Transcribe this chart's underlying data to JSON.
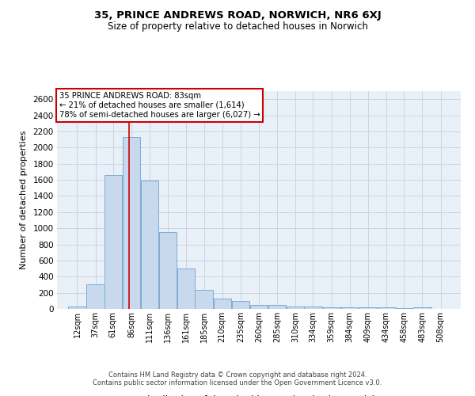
{
  "title1": "35, PRINCE ANDREWS ROAD, NORWICH, NR6 6XJ",
  "title2": "Size of property relative to detached houses in Norwich",
  "xlabel": "Distribution of detached houses by size in Norwich",
  "ylabel": "Number of detached properties",
  "footer1": "Contains HM Land Registry data © Crown copyright and database right 2024.",
  "footer2": "Contains public sector information licensed under the Open Government Licence v3.0.",
  "bar_color": "#c9d9ed",
  "bar_edgecolor": "#7aadd4",
  "annotation_line1": "35 PRINCE ANDREWS ROAD: 83sqm",
  "annotation_line2": "← 21% of detached houses are smaller (1,614)",
  "annotation_line3": "78% of semi-detached houses are larger (6,027) →",
  "annotation_box_edgecolor": "#cc0000",
  "vline_color": "#cc0000",
  "vline_x": 83,
  "categories": [
    "12sqm",
    "37sqm",
    "61sqm",
    "86sqm",
    "111sqm",
    "136sqm",
    "161sqm",
    "185sqm",
    "210sqm",
    "235sqm",
    "260sqm",
    "285sqm",
    "310sqm",
    "334sqm",
    "359sqm",
    "384sqm",
    "409sqm",
    "434sqm",
    "458sqm",
    "483sqm",
    "508sqm"
  ],
  "bin_centers": [
    12,
    37,
    61,
    86,
    111,
    136,
    161,
    185,
    210,
    235,
    260,
    285,
    310,
    334,
    359,
    384,
    409,
    434,
    458,
    483,
    508
  ],
  "bin_width": 25,
  "values": [
    25,
    300,
    1660,
    2130,
    1595,
    955,
    505,
    240,
    125,
    100,
    50,
    50,
    30,
    30,
    20,
    20,
    20,
    20,
    5,
    20,
    0
  ],
  "ylim": [
    0,
    2700
  ],
  "yticks": [
    0,
    200,
    400,
    600,
    800,
    1000,
    1200,
    1400,
    1600,
    1800,
    2000,
    2200,
    2400,
    2600
  ],
  "grid_color": "#c8d4e4",
  "bg_color": "#eaf0f8"
}
